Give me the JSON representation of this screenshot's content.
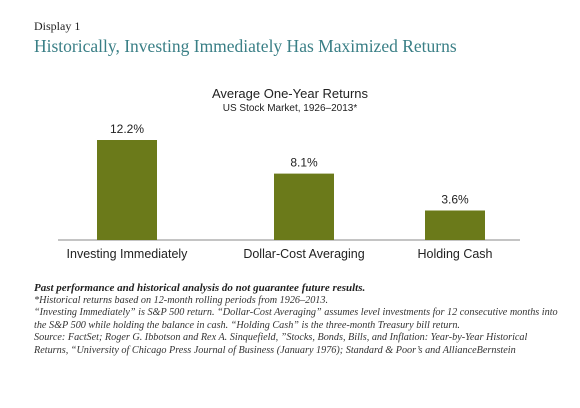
{
  "header": {
    "display_label": "Display 1",
    "title": "Historically, Investing Immediately Has Maximized Returns"
  },
  "chart_data": {
    "type": "bar",
    "title": "Average One-Year Returns",
    "subtitle": "US Stock Market, 1926–2013*",
    "categories": [
      "Investing Immediately",
      "Dollar-Cost Averaging",
      "Holding Cash"
    ],
    "values": [
      12.2,
      8.1,
      3.6
    ],
    "value_labels": [
      "12.2%",
      "8.1%",
      "3.6%"
    ],
    "xlabel": "",
    "ylabel": "",
    "ylim": [
      0,
      12.2
    ],
    "grid": false,
    "bar_color": "#6b7a1a"
  },
  "footnotes": {
    "disclaimer": "Past performance and historical analysis do not guarantee future results.",
    "note1": "*Historical returns based on 12-month rolling periods from 1926–2013.",
    "note2": "“Investing Immediately” is S&P 500 return. “Dollar-Cost Averaging” assumes level investments for 12 consecutive months into the S&P 500 while holding the balance in cash. “Holding Cash” is the three-month Treasury bill return.",
    "source": "Source: FactSet; Roger G. Ibbotson and Rex A. Sinquefield, ”Stocks, Bonds, Bills, and Inflation: Year-by-Year Historical Returns, “University of Chicago Press Journal of Business (January 1976); Standard & Poor’s and AllianceBernstein"
  }
}
